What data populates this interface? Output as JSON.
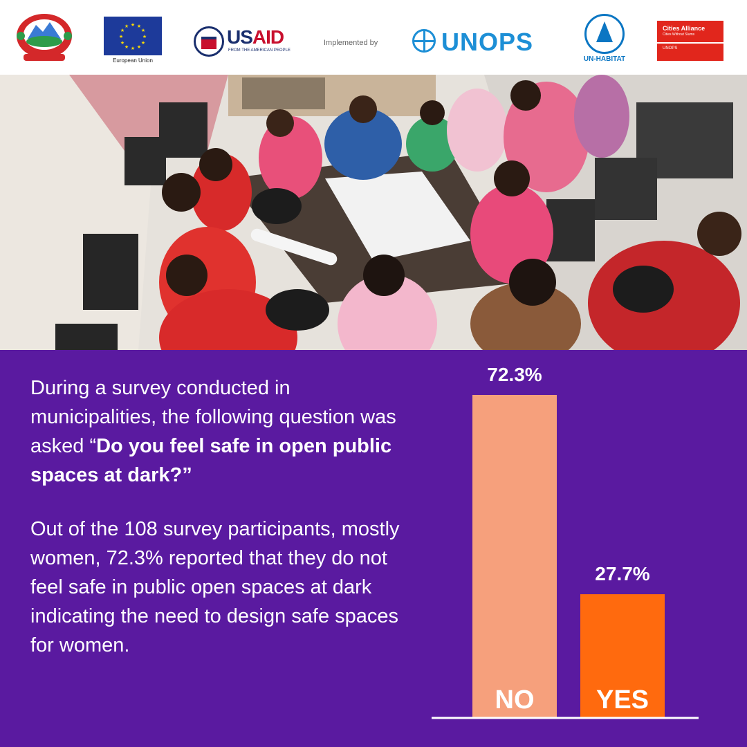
{
  "logos": {
    "eu_caption": "European Union",
    "usaid_us": "US",
    "usaid_aid": "AID",
    "usaid_sub": "FROM THE AMERICAN PEOPLE",
    "implemented_by": "Implemented by",
    "unops": "UNOPS",
    "un_habitat": "UN-HABITAT",
    "cities_alliance": "Cities Alliance",
    "cities_alliance_sub": "Cities Without Slums",
    "cities_alliance_host": "UNOPS"
  },
  "text": {
    "intro": "During a survey conducted in municipalities, the following question was asked “",
    "question": "Do you feel safe in open public spaces at dark?”",
    "finding": "Out of the 108 survey participants, mostly women, 72.3% reported that they do not feel safe in public open spaces at dark indicating the need to design safe spaces for women."
  },
  "colors": {
    "background": "#5a1aa0",
    "no_bar": "#f6a07c",
    "yes_bar": "#ff6a0e",
    "text": "#ffffff"
  },
  "chart_data": {
    "type": "bar",
    "categories": [
      "NO",
      "YES"
    ],
    "values": [
      72.3,
      27.7
    ],
    "data_labels": [
      "72.3%",
      "27.7%"
    ],
    "title": "",
    "xlabel": "",
    "ylabel": "",
    "ylim": [
      0,
      72.3
    ],
    "grid": false,
    "legend": "none"
  }
}
